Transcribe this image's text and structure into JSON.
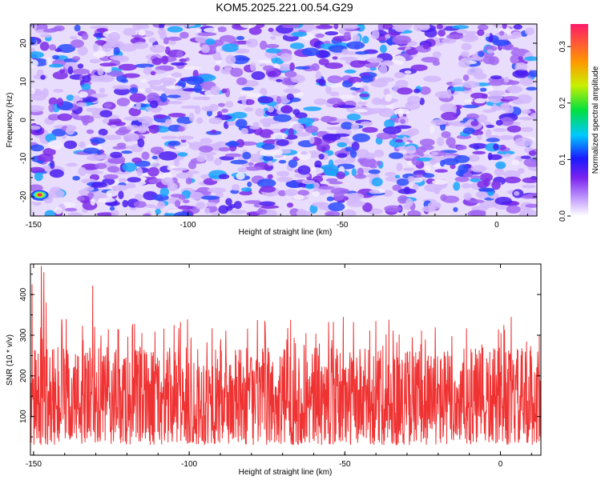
{
  "title": "KOM5.2025.221.00.54.G29",
  "chart_data": [
    {
      "type": "heatmap",
      "xlabel": "Height of straight line (km)",
      "ylabel": "Frequency (Hz)",
      "xlim": [
        -151,
        13
      ],
      "ylim": [
        -25,
        25
      ],
      "xticks": [
        "-150",
        "-100",
        "-50",
        "0"
      ],
      "yticks": [
        "-20",
        "-10",
        "0",
        "10",
        "20"
      ],
      "colorbar": {
        "label": "Normalized spectral amplitude",
        "range": [
          0.0,
          0.34
        ],
        "ticks": [
          "0.0",
          "0.1",
          "0.2",
          "0.3"
        ]
      },
      "notable": [
        {
          "x": -148,
          "y": -19.5,
          "amplitude": 0.32
        }
      ]
    },
    {
      "type": "line",
      "xlabel": "Height of straight line (km)",
      "ylabel": "SNR (10 * v/v)",
      "xlim": [
        -151,
        13
      ],
      "ylim": [
        5,
        475
      ],
      "xticks": [
        "-150",
        "-100",
        "-50",
        "0"
      ],
      "yticks": [
        "100",
        "200",
        "300",
        "400"
      ],
      "color": "#ef3333",
      "peaks": [
        {
          "x": -147.5,
          "y": 470
        },
        {
          "x": -146.7,
          "y": 455
        },
        {
          "x": -131,
          "y": 422
        },
        {
          "x": -150.5,
          "y": 425
        },
        {
          "x": -146,
          "y": 380
        },
        {
          "x": -50.5,
          "y": 345
        },
        {
          "x": 3.5,
          "y": 345
        },
        {
          "x": 12.5,
          "y": 300
        }
      ],
      "typical_range": [
        30,
        270
      ]
    }
  ]
}
